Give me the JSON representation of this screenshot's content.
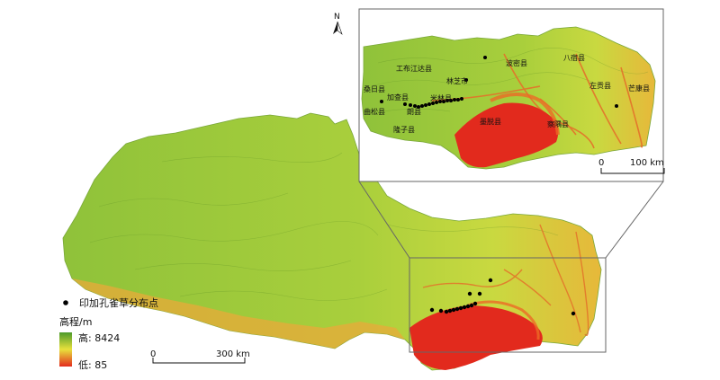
{
  "colors": {
    "high": "#4c9a2a",
    "mid": "#e8e13c",
    "low": "#e32b1e",
    "point": "#000000",
    "frame": "#555555"
  },
  "north": {
    "label": "N"
  },
  "inset": {
    "counties": [
      "工布江达县",
      "桑日县",
      "加查县",
      "曲松县",
      "朗县",
      "米林县",
      "林芝市",
      "波密县",
      "八宿县",
      "左贡县",
      "芒康县",
      "墨脱县",
      "察隅县",
      "隆子县"
    ],
    "scale": {
      "zero": "0",
      "end": "100 km"
    }
  },
  "main": {
    "scale": {
      "zero": "0",
      "end": "300 km"
    }
  },
  "legend": {
    "points_label": "印加孔雀草分布点",
    "elevation_title": "高程/m",
    "high_label": "高: 8424",
    "low_label": "低: 85"
  }
}
